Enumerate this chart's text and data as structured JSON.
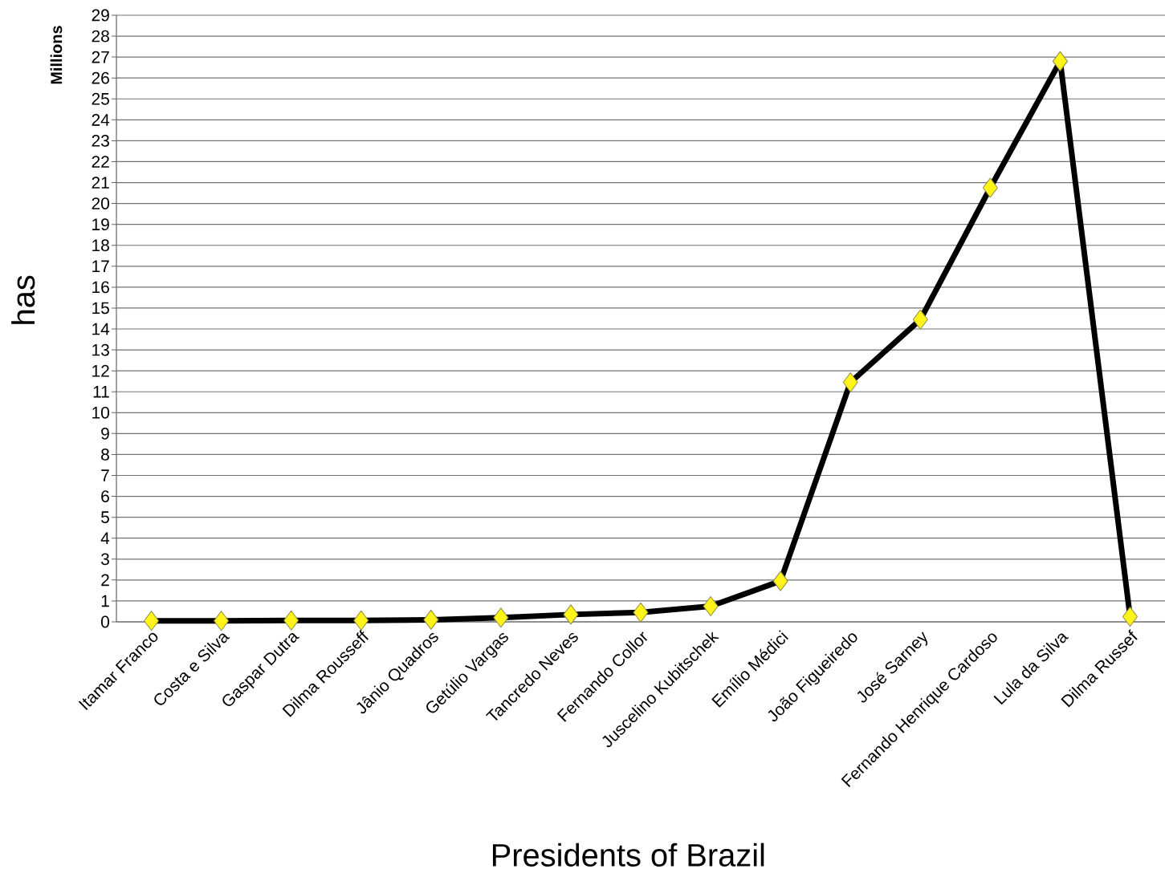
{
  "chart_data": {
    "type": "line",
    "xlabel": "Presidents of Brazil",
    "ylabel": "has",
    "annotations": [
      "Millions"
    ],
    "categories": [
      "Itamar Franco",
      "Costa e Silva",
      "Gaspar Dutra",
      "Dilma Rousseff",
      "Jânio Quadros",
      "Getúlio Vargas",
      "Tancredo Neves",
      "Fernando Collor",
      "Juscelino Kubitschek",
      "Emílio Médici",
      "João Figueiredo",
      "José Sarney",
      "Fernando Henrique Cardoso",
      "Lula da Silva",
      "Dilma Russef"
    ],
    "series": [
      {
        "color": "#000000",
        "values": [
          0.05,
          0.05,
          0.07,
          0.07,
          0.1,
          0.2,
          0.35,
          0.45,
          0.75,
          1.95,
          11.45,
          14.45,
          20.75,
          26.8,
          0.25
        ]
      }
    ],
    "ylim": [
      0,
      29
    ],
    "yticks": [
      0,
      1,
      2,
      3,
      4,
      5,
      6,
      7,
      8,
      9,
      10,
      11,
      12,
      13,
      14,
      15,
      16,
      17,
      18,
      19,
      20,
      21,
      22,
      23,
      24,
      25,
      26,
      27,
      28,
      29
    ],
    "grid": "y",
    "marker": "diamond",
    "line_style": "solid"
  }
}
